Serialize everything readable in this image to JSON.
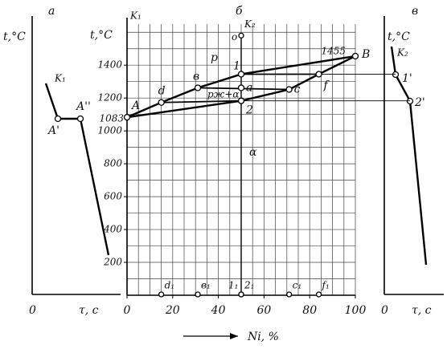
{
  "left": {
    "panel_label": "а",
    "y_label": "t,°C",
    "x_label": "τ, c",
    "origin": "0",
    "k_label": "K₁",
    "point_1": "A'",
    "point_2": "A''"
  },
  "right": {
    "panel_label": "в",
    "y_label": "t,°C",
    "x_label": "τ, c",
    "origin": "0",
    "k_label": "K₂",
    "point_1": "1'",
    "point_2": "2'"
  },
  "middle": {
    "panel_label": "б",
    "y_label": "t,°C",
    "k1_label": "K₁",
    "x_label": "Ni, %",
    "xlim": [
      0,
      100
    ],
    "ylim": [
      0,
      1650
    ],
    "xticks": [
      0,
      20,
      40,
      60,
      80,
      100
    ],
    "yticks": [
      200,
      400,
      600,
      800,
      1000,
      1200,
      1400
    ],
    "grid_x": [
      0,
      5,
      10,
      15,
      20,
      25,
      30,
      35,
      40,
      45,
      50,
      55,
      60,
      65,
      70,
      75,
      80,
      85,
      90,
      95,
      100
    ],
    "grid_y": [
      100,
      200,
      300,
      400,
      500,
      600,
      700,
      800,
      900,
      1000,
      1100,
      1200,
      1300,
      1400,
      1500,
      1600
    ],
    "liquidus": {
      "x": [
        0,
        15,
        31,
        50,
        100
      ],
      "y": [
        1083,
        1173,
        1262,
        1345,
        1455
      ]
    },
    "solidus": {
      "x": [
        0,
        50,
        71,
        84,
        100
      ],
      "y": [
        1083,
        1183,
        1252,
        1345,
        1455
      ]
    },
    "points": [
      {
        "label": "A",
        "x": 0,
        "y": 1083
      },
      {
        "label": "d",
        "x": 15,
        "y": 1173
      },
      {
        "label": "в",
        "x": 31,
        "y": 1262
      },
      {
        "label": "1",
        "x": 50,
        "y": 1345
      },
      {
        "label": "B",
        "x": 100,
        "y": 1455
      },
      {
        "label": "2",
        "x": 50,
        "y": 1183
      },
      {
        "label": "c",
        "x": 71,
        "y": 1252
      },
      {
        "label": "f",
        "x": 84,
        "y": 1345
      },
      {
        "label": "a",
        "x": 50,
        "y": 1262
      }
    ],
    "vertical": {
      "x": 50,
      "top": 1580,
      "top_label": "o",
      "k_label": "K₂"
    },
    "projections": [
      {
        "label": "d₁",
        "x": 15
      },
      {
        "label": "в₁",
        "x": 31
      },
      {
        "label": "1₁",
        "x": 50
      },
      {
        "label": "2₁",
        "x": 50
      },
      {
        "label": "c₁",
        "x": 71
      },
      {
        "label": "f₁",
        "x": 84
      }
    ],
    "region_liquid": "p",
    "region_two_phase": "pж+α",
    "region_solid": "α"
  }
}
